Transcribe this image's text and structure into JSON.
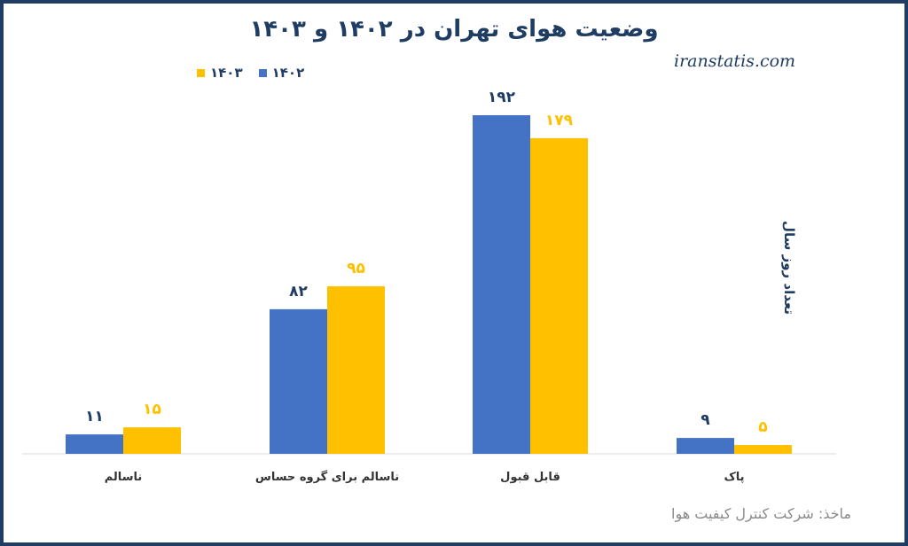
{
  "chart_data": {
    "type": "bar",
    "title": "وضعیت هوای تهران در ۱۴۰۲ و ۱۴۰۳",
    "watermark": "iranstatis.com",
    "ylabel": "تعداد روز سال",
    "source": "ماخذ: شرکت کنترل کیفیت هوا",
    "categories": [
      "ناسالم",
      "ناسالم  برای گروه حساس",
      "قابل قبول",
      "پاک"
    ],
    "series": [
      {
        "name": "۱۴۰۲",
        "color": "#4472c4",
        "values": [
          11,
          82,
          192,
          9
        ],
        "value_labels": [
          "۱۱",
          "۸۲",
          "۱۹۲",
          "۹"
        ]
      },
      {
        "name": "۱۴۰۳",
        "color": "#ffc000",
        "values": [
          15,
          95,
          179,
          5
        ],
        "value_labels": [
          "۱۵",
          "۹۵",
          "۱۷۹",
          "۵"
        ]
      }
    ],
    "ylim": [
      0,
      192
    ],
    "grid": false,
    "legend_position": "top-left"
  }
}
